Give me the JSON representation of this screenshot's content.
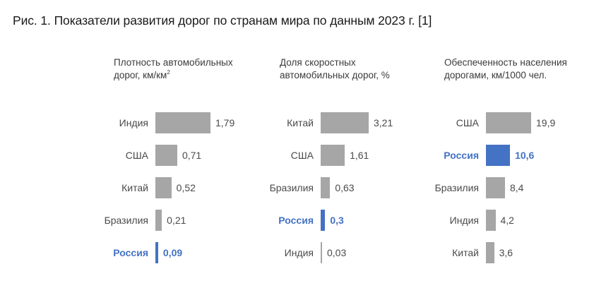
{
  "title": "Рис. 1. Показатели развития дорог по странам мира по данным 2023 г. [1]",
  "highlight": {
    "country": "Россия",
    "color": "#4472c4",
    "bar_color": "#a6a6a6"
  },
  "chart_data": [
    {
      "type": "bar",
      "orientation": "horizontal",
      "title_lines": [
        "Плотность автомобильных",
        "дорог, км/км"
      ],
      "title_superscript": "2",
      "categories": [
        "Индия",
        "США",
        "Китай",
        "Бразилия",
        "Россия"
      ],
      "values": [
        1.79,
        0.71,
        0.52,
        0.21,
        0.09
      ],
      "value_labels": [
        "1,79",
        "0,71",
        "0,52",
        "0,21",
        "0,09"
      ]
    },
    {
      "type": "bar",
      "orientation": "horizontal",
      "title_lines": [
        "Доля скоростных",
        "автомобильных дорог, %"
      ],
      "title_superscript": "",
      "categories": [
        "Китай",
        "США",
        "Бразилия",
        "Россия",
        "Индия"
      ],
      "values": [
        3.21,
        1.61,
        0.63,
        0.3,
        0.03
      ],
      "value_labels": [
        "3,21",
        "1,61",
        "0,63",
        "0,3",
        "0,03"
      ]
    },
    {
      "type": "bar",
      "orientation": "horizontal",
      "title_lines": [
        "Обеспеченность населения",
        "дорогами, км/1000 чел."
      ],
      "title_superscript": "",
      "categories": [
        "США",
        "Россия",
        "Бразилия",
        "Индия",
        "Китай"
      ],
      "values": [
        19.9,
        10.6,
        8.4,
        4.2,
        3.6
      ],
      "value_labels": [
        "19,9",
        "10,6",
        "8,4",
        "4,2",
        "3,6"
      ]
    }
  ]
}
